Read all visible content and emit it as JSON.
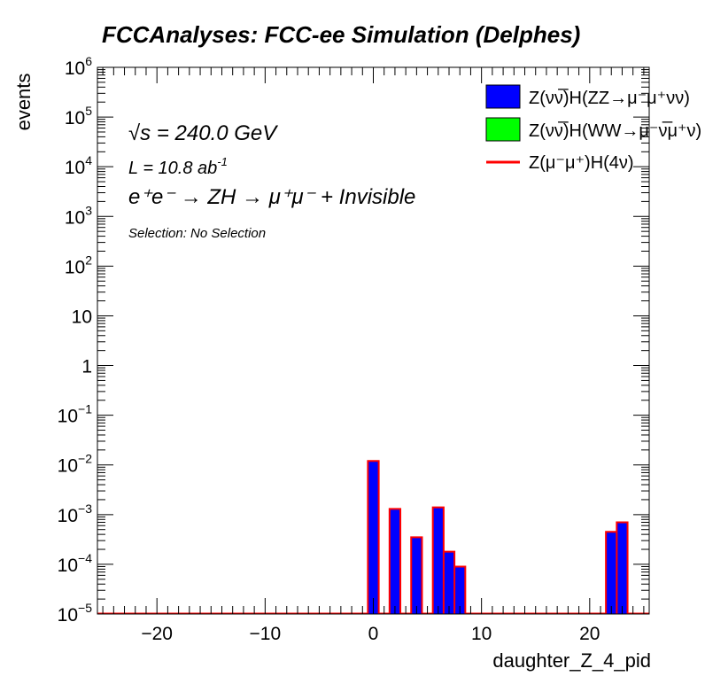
{
  "colors": {
    "zz_fill": "#0000ff",
    "ww_fill": "#00ff00",
    "signal_line": "#ff0000",
    "outline": "#000000"
  },
  "chart_data": {
    "type": "bar",
    "title": "FCCAnalyses: FCC-ee Simulation (Delphes)",
    "xlabel": "daughter_Z_4_pid",
    "ylabel": "events",
    "xlim": [
      -25.5,
      25.5
    ],
    "ylim": [
      1e-05,
      1000000.0
    ],
    "log_y": true,
    "bin_width": 1,
    "x_ticks": [
      -20,
      -10,
      0,
      10,
      20
    ],
    "x_tick_labels": [
      "−20",
      "−10",
      "0",
      "10",
      "20"
    ],
    "y_ticks": [
      {
        "value": 1e-05,
        "base": "10",
        "exp": "−5"
      },
      {
        "value": 0.0001,
        "base": "10",
        "exp": "−4"
      },
      {
        "value": 0.001,
        "base": "10",
        "exp": "−3"
      },
      {
        "value": 0.01,
        "base": "10",
        "exp": "−2"
      },
      {
        "value": 0.1,
        "base": "10",
        "exp": "−1"
      },
      {
        "value": 1,
        "base": "1",
        "exp": ""
      },
      {
        "value": 10,
        "base": "10",
        "exp": ""
      },
      {
        "value": 100,
        "base": "10",
        "exp": "2"
      },
      {
        "value": 1000,
        "base": "10",
        "exp": "3"
      },
      {
        "value": 10000,
        "base": "10",
        "exp": "4"
      },
      {
        "value": 100000,
        "base": "10",
        "exp": "5"
      },
      {
        "value": 1000000,
        "base": "10",
        "exp": "6"
      }
    ],
    "bins": [
      {
        "x": 0,
        "value": 0.012
      },
      {
        "x": 2,
        "value": 0.0013
      },
      {
        "x": 4,
        "value": 0.00035
      },
      {
        "x": 6,
        "value": 0.0014
      },
      {
        "x": 7,
        "value": 0.00018
      },
      {
        "x": 8,
        "value": 9e-05
      },
      {
        "x": 22,
        "value": 0.00045
      },
      {
        "x": 23,
        "value": 0.0007
      }
    ],
    "legend": [
      {
        "label": "Z(νν̅)H(ZZ→μ⁻μ⁺νν)",
        "style": "fill",
        "color": "#0000ff"
      },
      {
        "label": "Z(νν̅)H(WW→μ⁻ν̅μ⁺ν)",
        "style": "fill",
        "color": "#00ff00"
      },
      {
        "label": "Z(μ⁻μ⁺)H(4ν)",
        "style": "line",
        "color": "#ff0000"
      }
    ],
    "legend_position": "top-right",
    "annotations": {
      "sqrt_s": "√s = 240.0 GeV",
      "lumi": "L = 10.8 ab",
      "lumi_exp": "-1",
      "process": "e⁺e⁻ → ZH → μ⁺μ⁻ + Invisible",
      "selection": "Selection: No Selection"
    }
  }
}
